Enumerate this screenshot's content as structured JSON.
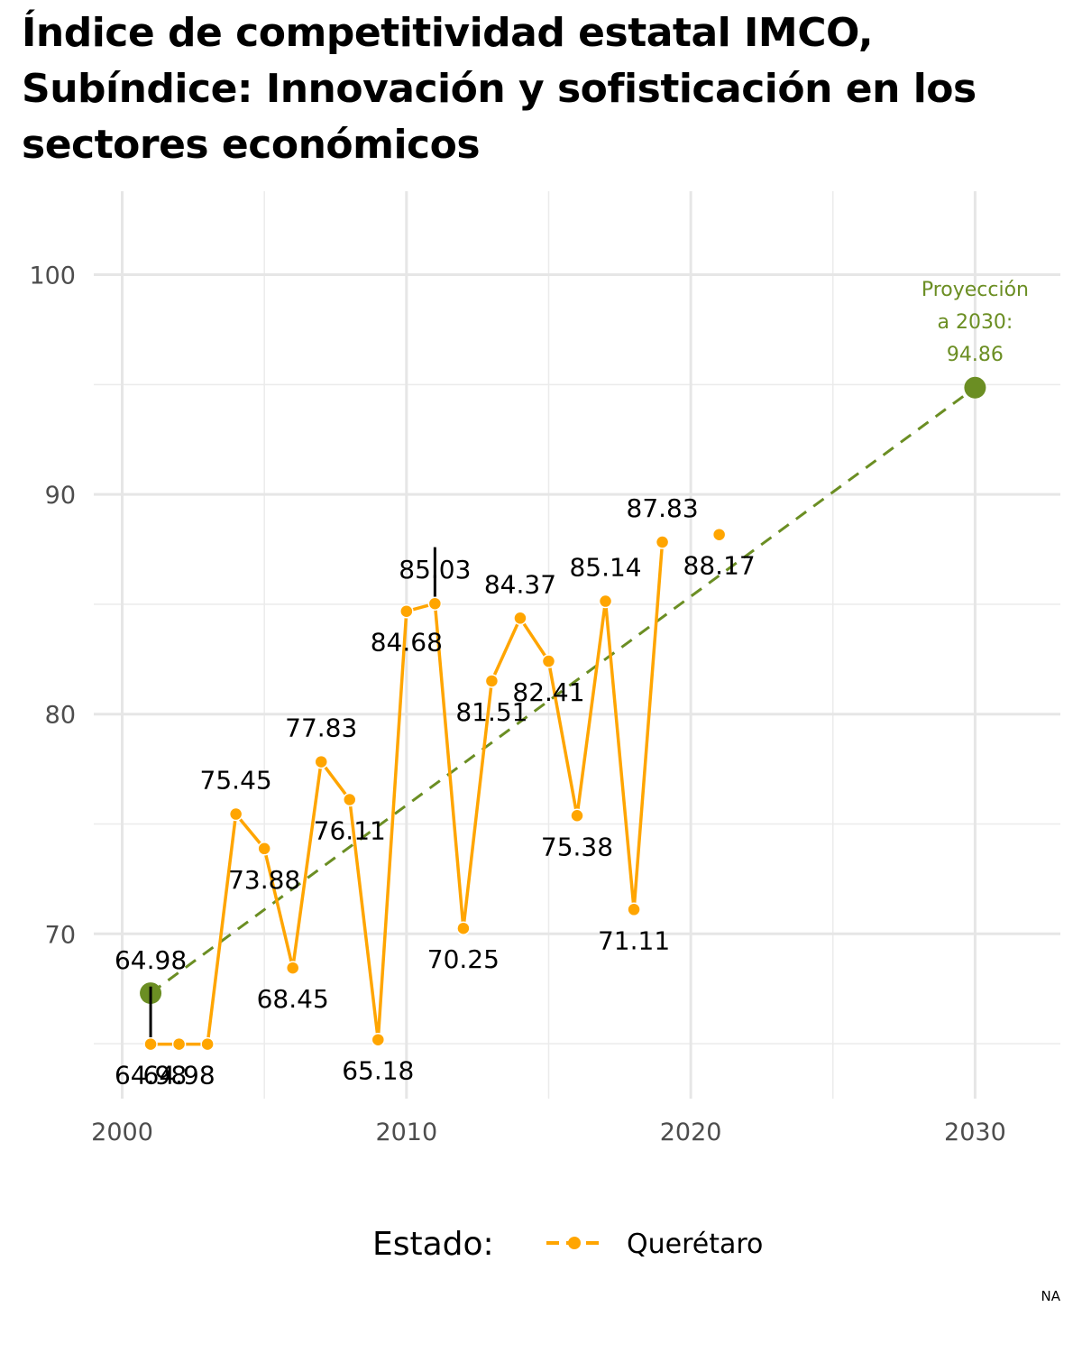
{
  "chart_data": {
    "type": "line",
    "title": "Índice de competitividad estatal IMCO, Subíndice: Innovación y sofisticación en los sectores económicos",
    "xlim": [
      1999,
      2033
    ],
    "ylim": [
      62.5,
      103.8
    ],
    "x_ticks": [
      2000,
      2010,
      2020,
      2030
    ],
    "y_ticks": [
      70,
      80,
      90,
      100
    ],
    "grid": true,
    "legend": {
      "title": "Estado:",
      "position": "bottom"
    },
    "series": [
      {
        "name": "Querétaro",
        "color": "#FFA500",
        "x": [
          2001,
          2002,
          2003,
          2004,
          2005,
          2006,
          2007,
          2008,
          2009,
          2010,
          2011,
          2012,
          2013,
          2014,
          2015,
          2016,
          2017,
          2018,
          2019,
          2020,
          2021
        ],
        "y": [
          64.98,
          64.98,
          64.98,
          75.45,
          73.88,
          68.45,
          77.83,
          76.11,
          65.18,
          84.68,
          85.03,
          70.25,
          81.51,
          84.37,
          82.41,
          75.38,
          85.14,
          71.11,
          87.83,
          null,
          88.17
        ],
        "labels": [
          "64.98",
          "64.98",
          "",
          "75.45",
          "73.88",
          "68.45",
          "77.83",
          "76.11",
          "65.18",
          "84.68",
          "85.03",
          "70.25",
          "81.51",
          "84.37",
          "82.41",
          "75.38",
          "85.14",
          "71.11",
          "87.83",
          "",
          "88.17"
        ]
      }
    ],
    "trend": {
      "color": "#6B8E23",
      "x": [
        2001,
        2030
      ],
      "y": [
        67.3,
        94.86
      ]
    },
    "highlight_lines": [
      {
        "x": 2001,
        "y_from": 64.98,
        "y_to": 67.6,
        "label": "64.98"
      },
      {
        "x": 2011,
        "y_from": 85.03,
        "y_to": 87.6
      }
    ],
    "projection": {
      "x": 2030,
      "y": 94.86,
      "label_lines": [
        "Proyección",
        "a 2030:",
        "94.86"
      ]
    }
  },
  "caption": "NA"
}
